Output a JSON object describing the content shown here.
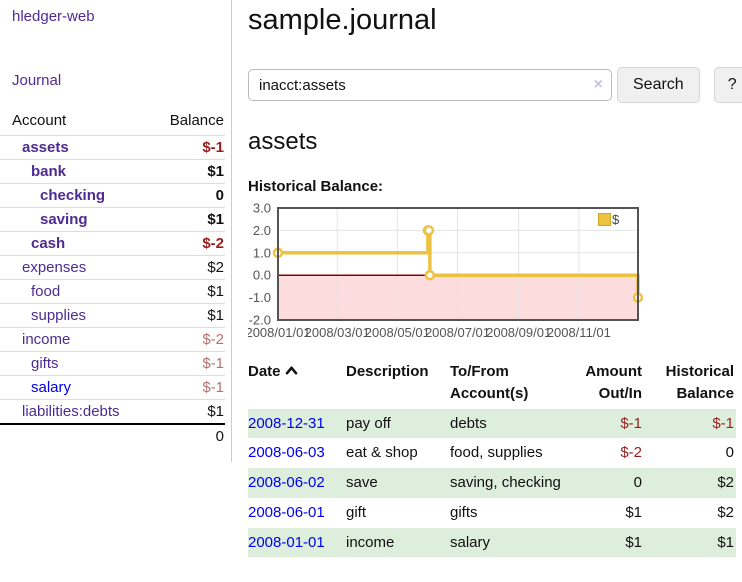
{
  "app": {
    "brand": "hledger-web",
    "nav_journal": "Journal"
  },
  "sidebar": {
    "header": {
      "account": "Account",
      "balance": "Balance"
    },
    "accounts": [
      {
        "name": "assets",
        "depth": 1,
        "bold": true,
        "link": "purple",
        "balance": "$-1",
        "balance_style": "neg-strong"
      },
      {
        "name": "bank",
        "depth": 2,
        "bold": true,
        "link": "purple",
        "balance": "$1",
        "balance_style": "pos"
      },
      {
        "name": "checking",
        "depth": 3,
        "bold": true,
        "link": "purple",
        "balance": "0",
        "balance_style": "pos"
      },
      {
        "name": "saving",
        "depth": 3,
        "bold": true,
        "link": "purple",
        "balance": "$1",
        "balance_style": "pos"
      },
      {
        "name": "cash",
        "depth": 2,
        "bold": true,
        "link": "purple",
        "balance": "$-2",
        "balance_style": "neg-strong"
      },
      {
        "name": "expenses",
        "depth": 1,
        "bold": false,
        "link": "purple",
        "balance": "$2",
        "balance_style": "pos"
      },
      {
        "name": "food",
        "depth": 2,
        "bold": false,
        "link": "purple",
        "balance": "$1",
        "balance_style": "pos"
      },
      {
        "name": "supplies",
        "depth": 2,
        "bold": false,
        "link": "purple",
        "balance": "$1",
        "balance_style": "pos"
      },
      {
        "name": "income",
        "depth": 1,
        "bold": false,
        "link": "purple",
        "balance": "$-2",
        "balance_style": "neg-muted"
      },
      {
        "name": "gifts",
        "depth": 2,
        "bold": false,
        "link": "purple",
        "balance": "$-1",
        "balance_style": "neg-muted"
      },
      {
        "name": "salary",
        "depth": 2,
        "bold": false,
        "link": "blue",
        "balance": "$-1",
        "balance_style": "neg-muted"
      },
      {
        "name": "liabilities:debts",
        "depth": 1,
        "bold": false,
        "link": "purple",
        "balance": "$1",
        "balance_style": "pos"
      }
    ],
    "total": "0"
  },
  "header": {
    "title": "sample.journal"
  },
  "search": {
    "value": "inacct:assets",
    "clear_icon": "×",
    "button_label": "Search",
    "help_label": "?"
  },
  "account_page": {
    "heading": "assets",
    "chart_label": "Historical Balance:"
  },
  "chart_data": {
    "type": "line",
    "step": true,
    "title": "Historical Balance",
    "series": [
      {
        "name": "$",
        "color": "#edc240",
        "points": [
          [
            "2008-01-01",
            1
          ],
          [
            "2008-06-01",
            2
          ],
          [
            "2008-06-02",
            2
          ],
          [
            "2008-06-03",
            0
          ],
          [
            "2008-12-31",
            -1
          ]
        ]
      }
    ],
    "xlim": [
      "2008-01-01",
      "2008-12-31"
    ],
    "ylim": [
      -2,
      3
    ],
    "x_ticks": [
      "2008/01/01",
      "2008/03/01",
      "2008/05/01",
      "2008/07/01",
      "2008/09/01",
      "2008/11/01"
    ],
    "y_ticks": [
      3.0,
      2.0,
      1.0,
      0.0,
      -1.0,
      -2.0
    ],
    "grid": true,
    "legend_position": "top-right",
    "legend_label": "$",
    "negative_region_color": "#fcdcdc",
    "zero_line_color": "#8b0000",
    "axis_color": "#545454",
    "grid_color": "#e4e4e4"
  },
  "register": {
    "columns": {
      "date": "Date",
      "description": "Description",
      "accounts_line1": "To/From",
      "accounts_line2": "Account(s)",
      "amount_line1": "Amount",
      "amount_line2": "Out/In",
      "balance_line1": "Historical",
      "balance_line2": "Balance"
    },
    "rows": [
      {
        "date": "2008-12-31",
        "description": "pay off",
        "accounts": "debts",
        "amount": "$-1",
        "amount_neg": true,
        "balance": "$-1",
        "balance_neg": true,
        "stripe": true
      },
      {
        "date": "2008-06-03",
        "description": "eat & shop",
        "accounts": "food, supplies",
        "amount": "$-2",
        "amount_neg": true,
        "balance": "0",
        "balance_neg": false,
        "stripe": false
      },
      {
        "date": "2008-06-02",
        "description": "save",
        "accounts": "saving, checking",
        "amount": "0",
        "amount_neg": false,
        "balance": "$2",
        "balance_neg": false,
        "stripe": true
      },
      {
        "date": "2008-06-01",
        "description": "gift",
        "accounts": "gifts",
        "amount": "$1",
        "amount_neg": false,
        "balance": "$2",
        "balance_neg": false,
        "stripe": false
      },
      {
        "date": "2008-01-01",
        "description": "income",
        "accounts": "salary",
        "amount": "$1",
        "amount_neg": false,
        "balance": "$1",
        "balance_neg": false,
        "stripe": true
      }
    ]
  }
}
